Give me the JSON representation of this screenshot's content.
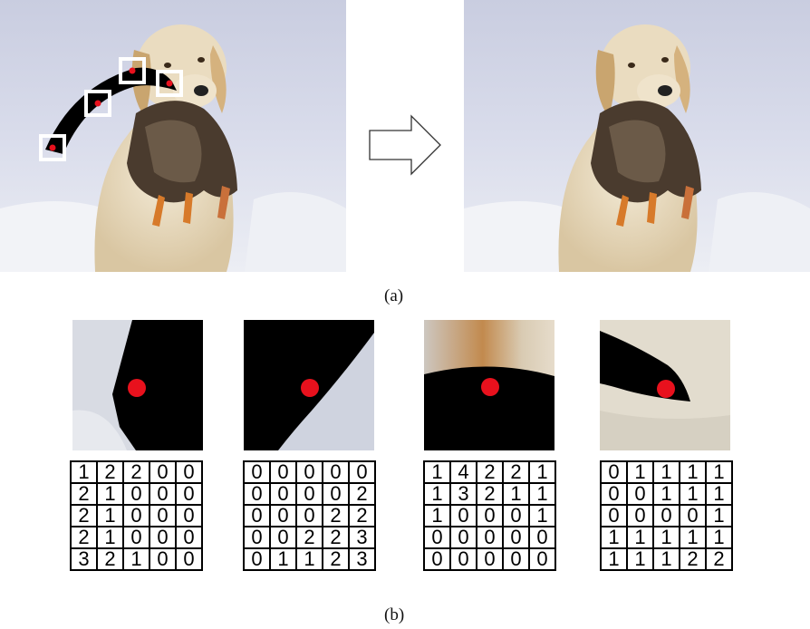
{
  "captions": {
    "a": "(a)",
    "b": "(b)"
  },
  "figure_a": {
    "left_image": "dog-with-duck-and-mask-stroke",
    "arrow": "right-arrow-icon",
    "right_image": "dog-with-duck-inpainted"
  },
  "grids": [
    {
      "rows": [
        [
          1,
          2,
          2,
          0,
          0
        ],
        [
          2,
          1,
          0,
          0,
          0
        ],
        [
          2,
          1,
          0,
          0,
          0
        ],
        [
          2,
          1,
          0,
          0,
          0
        ],
        [
          3,
          2,
          1,
          0,
          0
        ]
      ]
    },
    {
      "rows": [
        [
          0,
          0,
          0,
          0,
          0
        ],
        [
          0,
          0,
          0,
          0,
          2
        ],
        [
          0,
          0,
          0,
          2,
          2
        ],
        [
          0,
          0,
          2,
          2,
          3
        ],
        [
          0,
          1,
          1,
          2,
          3
        ]
      ]
    },
    {
      "rows": [
        [
          1,
          4,
          2,
          2,
          1
        ],
        [
          1,
          3,
          2,
          1,
          1
        ],
        [
          1,
          0,
          0,
          0,
          1
        ],
        [
          0,
          0,
          0,
          0,
          0
        ],
        [
          0,
          0,
          0,
          0,
          0
        ]
      ]
    },
    {
      "rows": [
        [
          0,
          1,
          1,
          1,
          1
        ],
        [
          0,
          0,
          1,
          1,
          1
        ],
        [
          0,
          0,
          0,
          0,
          1
        ],
        [
          1,
          1,
          1,
          1,
          1
        ],
        [
          1,
          1,
          1,
          2,
          2
        ]
      ]
    }
  ]
}
